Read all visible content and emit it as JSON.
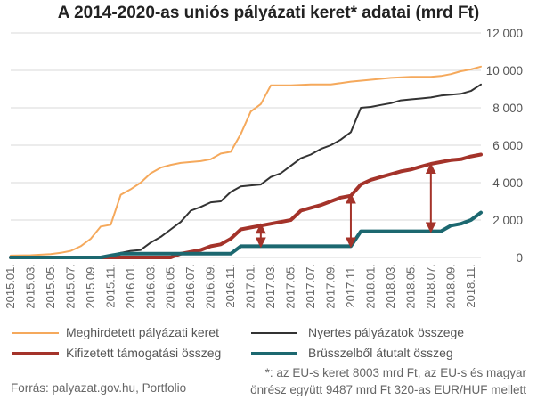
{
  "title": "A 2014-2020-as uniós pályázati keret* adatai (mrd Ft)",
  "source": "Forrás: palyazat.gov.hu, Portfolio",
  "footnote_line1": "*: az EU-s keret 8003 mrd Ft, az EU-s és magyar",
  "footnote_line2": "önrész együtt 9487 mrd Ft 320-as EUR/HUF mellett",
  "chart_data": {
    "type": "line",
    "title": "A 2014-2020-as uniós pályázati keret* adatai (mrd Ft)",
    "y_axis_side": "right",
    "ylim": [
      0,
      12000
    ],
    "yticks": [
      0,
      2000,
      4000,
      6000,
      8000,
      10000,
      12000
    ],
    "ytick_labels": [
      "0",
      "2 000",
      "4 000",
      "6 000",
      "8 000",
      "10 000",
      "12 000"
    ],
    "x_start": "2015-01",
    "x_end": "2018-12",
    "xtick_labels": [
      "2015.01.",
      "2015.03.",
      "2015.05.",
      "2015.07.",
      "2015.09.",
      "2015.11.",
      "2016.01.",
      "2016.03.",
      "2016.05.",
      "2016.07.",
      "2016.09.",
      "2016.11.",
      "2017.01.",
      "2017.03.",
      "2017.05.",
      "2017.07.",
      "2017.09.",
      "2017.11.",
      "2018.01.",
      "2018.03.",
      "2018.05.",
      "2018.07.",
      "2018.09.",
      "2018.11."
    ],
    "grid": true,
    "legend_position": "bottom",
    "series": [
      {
        "name": "Meghirdetett pályázati keret",
        "color": "#f5a95c",
        "width": 2,
        "points": [
          [
            "2015-01",
            100
          ],
          [
            "2015-03",
            120
          ],
          [
            "2015-05",
            180
          ],
          [
            "2015-06",
            250
          ],
          [
            "2015-07",
            350
          ],
          [
            "2015-08",
            600
          ],
          [
            "2015-09",
            1000
          ],
          [
            "2015-10",
            1650
          ],
          [
            "2015-11",
            1750
          ],
          [
            "2015-12",
            3350
          ],
          [
            "2016-01",
            3650
          ],
          [
            "2016-02",
            4000
          ],
          [
            "2016-03",
            4500
          ],
          [
            "2016-04",
            4800
          ],
          [
            "2016-05",
            4950
          ],
          [
            "2016-06",
            5050
          ],
          [
            "2016-07",
            5100
          ],
          [
            "2016-08",
            5150
          ],
          [
            "2016-09",
            5250
          ],
          [
            "2016-10",
            5550
          ],
          [
            "2016-11",
            5650
          ],
          [
            "2016-12",
            6600
          ],
          [
            "2017-01",
            7800
          ],
          [
            "2017-02",
            8200
          ],
          [
            "2017-03",
            9200
          ],
          [
            "2017-05",
            9200
          ],
          [
            "2017-07",
            9250
          ],
          [
            "2017-09",
            9250
          ],
          [
            "2017-11",
            9400
          ],
          [
            "2018-01",
            9500
          ],
          [
            "2018-03",
            9600
          ],
          [
            "2018-05",
            9650
          ],
          [
            "2018-07",
            9650
          ],
          [
            "2018-08",
            9700
          ],
          [
            "2018-09",
            9800
          ],
          [
            "2018-10",
            9950
          ],
          [
            "2018-11",
            10050
          ],
          [
            "2018-12",
            10200
          ]
        ]
      },
      {
        "name": "Nyertes pályázatok összege",
        "color": "#333333",
        "width": 2,
        "points": [
          [
            "2015-01",
            0
          ],
          [
            "2015-10",
            0
          ],
          [
            "2015-11",
            100
          ],
          [
            "2015-12",
            250
          ],
          [
            "2016-01",
            350
          ],
          [
            "2016-02",
            400
          ],
          [
            "2016-03",
            800
          ],
          [
            "2016-04",
            1100
          ],
          [
            "2016-05",
            1500
          ],
          [
            "2016-06",
            1900
          ],
          [
            "2016-07",
            2500
          ],
          [
            "2016-08",
            2700
          ],
          [
            "2016-09",
            2950
          ],
          [
            "2016-10",
            3000
          ],
          [
            "2016-11",
            3500
          ],
          [
            "2016-12",
            3800
          ],
          [
            "2017-01",
            3850
          ],
          [
            "2017-02",
            3900
          ],
          [
            "2017-03",
            4300
          ],
          [
            "2017-04",
            4500
          ],
          [
            "2017-05",
            4900
          ],
          [
            "2017-06",
            5300
          ],
          [
            "2017-07",
            5500
          ],
          [
            "2017-08",
            5800
          ],
          [
            "2017-09",
            6000
          ],
          [
            "2017-10",
            6300
          ],
          [
            "2017-11",
            6700
          ],
          [
            "2017-12",
            8000
          ],
          [
            "2018-01",
            8050
          ],
          [
            "2018-02",
            8150
          ],
          [
            "2018-03",
            8250
          ],
          [
            "2018-04",
            8400
          ],
          [
            "2018-05",
            8450
          ],
          [
            "2018-06",
            8500
          ],
          [
            "2018-07",
            8550
          ],
          [
            "2018-08",
            8650
          ],
          [
            "2018-09",
            8700
          ],
          [
            "2018-10",
            8750
          ],
          [
            "2018-11",
            8900
          ],
          [
            "2018-12",
            9250
          ]
        ]
      },
      {
        "name": "Kifizetett támogatási összeg",
        "color": "#a4332a",
        "width": 4,
        "points": [
          [
            "2015-01",
            0
          ],
          [
            "2016-05",
            0
          ],
          [
            "2016-06",
            200
          ],
          [
            "2016-07",
            300
          ],
          [
            "2016-08",
            400
          ],
          [
            "2016-09",
            600
          ],
          [
            "2016-10",
            700
          ],
          [
            "2016-11",
            1000
          ],
          [
            "2016-12",
            1500
          ],
          [
            "2017-01",
            1600
          ],
          [
            "2017-02",
            1700
          ],
          [
            "2017-03",
            1800
          ],
          [
            "2017-04",
            1900
          ],
          [
            "2017-05",
            2000
          ],
          [
            "2017-06",
            2500
          ],
          [
            "2017-07",
            2650
          ],
          [
            "2017-08",
            2800
          ],
          [
            "2017-09",
            3000
          ],
          [
            "2017-10",
            3200
          ],
          [
            "2017-11",
            3300
          ],
          [
            "2017-12",
            3900
          ],
          [
            "2018-01",
            4150
          ],
          [
            "2018-02",
            4300
          ],
          [
            "2018-03",
            4450
          ],
          [
            "2018-04",
            4600
          ],
          [
            "2018-05",
            4700
          ],
          [
            "2018-06",
            4850
          ],
          [
            "2018-07",
            5000
          ],
          [
            "2018-08",
            5100
          ],
          [
            "2018-09",
            5200
          ],
          [
            "2018-10",
            5250
          ],
          [
            "2018-11",
            5400
          ],
          [
            "2018-12",
            5500
          ]
        ]
      },
      {
        "name": "Brüsszelből átutalt összeg",
        "color": "#1c6870",
        "width": 4,
        "points": [
          [
            "2015-01",
            0
          ],
          [
            "2015-10",
            0
          ],
          [
            "2015-11",
            100
          ],
          [
            "2015-12",
            200
          ],
          [
            "2016-11",
            200
          ],
          [
            "2016-12",
            600
          ],
          [
            "2017-11",
            600
          ],
          [
            "2017-12",
            1400
          ],
          [
            "2018-07",
            1400
          ],
          [
            "2018-08",
            1400
          ],
          [
            "2018-09",
            1700
          ],
          [
            "2018-10",
            1800
          ],
          [
            "2018-11",
            2000
          ],
          [
            "2018-12",
            2400
          ]
        ]
      }
    ],
    "arrows": [
      {
        "date": "2017-02",
        "from": 650,
        "to": 1700
      },
      {
        "date": "2017-11",
        "from": 650,
        "to": 3300
      },
      {
        "date": "2018-07",
        "from": 1450,
        "to": 4900
      }
    ]
  },
  "legend": {
    "meghirdetett": "Meghirdetett pályázati keret",
    "nyertes": "Nyertes pályázatok összege",
    "kifizetett": "Kifizetett támogatási összeg",
    "brusszel": "Brüsszelből átutalt összeg"
  }
}
